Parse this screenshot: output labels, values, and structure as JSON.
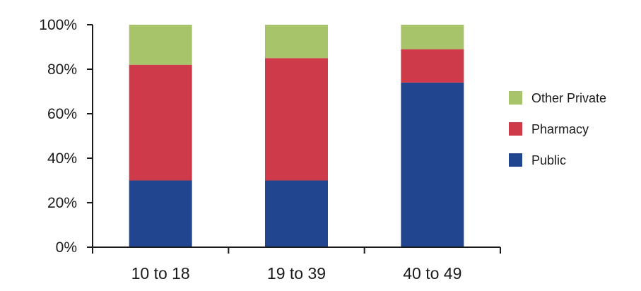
{
  "chart_data": {
    "type": "bar",
    "stacked": true,
    "categories": [
      "10 to 18",
      "19 to 39",
      "40 to 49"
    ],
    "series": [
      {
        "name": "Public",
        "color": "#21468f",
        "values": [
          30,
          30,
          74
        ]
      },
      {
        "name": "Pharmacy",
        "color": "#cf3a4a",
        "values": [
          52,
          55,
          15
        ]
      },
      {
        "name": "Other Private",
        "color": "#a8c46b",
        "values": [
          18,
          15,
          11
        ]
      }
    ],
    "ylim": [
      0,
      100
    ],
    "yticks": [
      "0%",
      "20%",
      "40%",
      "60%",
      "80%",
      "100%"
    ],
    "ytick_values": [
      0,
      20,
      40,
      60,
      80,
      100
    ],
    "legend": {
      "placement": "right",
      "order": [
        "Other Private",
        "Pharmacy",
        "Public"
      ]
    },
    "grid": false,
    "title": "",
    "xlabel": "",
    "ylabel": ""
  }
}
